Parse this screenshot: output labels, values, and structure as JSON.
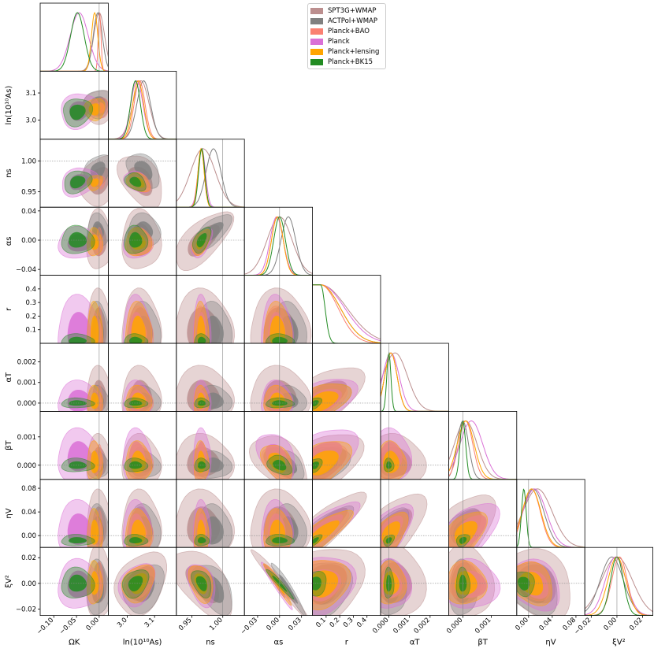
{
  "chart_data": {
    "type": "triangle_corner_plot",
    "parameters": [
      {
        "symbol": "Ω_K",
        "label": "ΩK",
        "ticks": [
          -0.1,
          -0.05,
          0.0
        ],
        "tick_labels": [
          "−0.10",
          "−0.05",
          "0.00"
        ],
        "range": [
          -0.13,
          0.02
        ],
        "fiducial": 0.0
      },
      {
        "symbol": "ln(10^10 A_s)",
        "label": "ln(10¹⁰As)",
        "ticks": [
          3.0,
          3.1
        ],
        "tick_labels": [
          "3.0",
          "3.1"
        ],
        "range": [
          2.93,
          3.18
        ],
        "fiducial": null
      },
      {
        "symbol": "n_s",
        "label": "ns",
        "ticks": [
          0.95,
          1.0
        ],
        "tick_labels": [
          "0.95",
          "1.00"
        ],
        "range": [
          0.925,
          1.035
        ],
        "fiducial": 1.0
      },
      {
        "symbol": "α_s",
        "label": "αs",
        "ticks": [
          -0.03,
          0.0,
          0.03
        ],
        "tick_labels": [
          "−0.03",
          "0.00",
          "0.03"
        ],
        "range": [
          -0.048,
          0.045
        ],
        "fiducial": 0.0
      },
      {
        "symbol": "r",
        "label": "r",
        "ticks": [
          0.1,
          0.2,
          0.3,
          0.4
        ],
        "tick_labels": [
          "0.1",
          "0.2",
          "0.3",
          "0.4"
        ],
        "range": [
          0.0,
          0.5
        ],
        "fiducial": null
      },
      {
        "symbol": "α_T",
        "label": "αT",
        "ticks": [
          0.0,
          0.001,
          0.002
        ],
        "tick_labels": [
          "0.000",
          "0.001",
          "0.002"
        ],
        "range": [
          -0.0004,
          0.0029
        ],
        "fiducial": 0.0
      },
      {
        "symbol": "β_T",
        "label": "βT",
        "ticks": [
          0.0,
          0.001
        ],
        "tick_labels": [
          "0.000",
          "0.001"
        ],
        "range": [
          -0.0005,
          0.0019
        ],
        "fiducial": 0.0
      },
      {
        "symbol": "η_V",
        "label": "ηV",
        "ticks": [
          0.0,
          0.04,
          0.08
        ],
        "tick_labels": [
          "0.00",
          "0.04",
          "0.08"
        ],
        "range": [
          -0.02,
          0.095
        ],
        "fiducial": 0.0
      },
      {
        "symbol": "ξ_V^2",
        "label": "ξV²",
        "ticks": [
          -0.02,
          0.0,
          0.02
        ],
        "tick_labels": [
          "−0.02",
          "0.00",
          "0.02"
        ],
        "range": [
          -0.025,
          0.028
        ],
        "fiducial": 0.0
      }
    ],
    "y_axis_ticks": {
      "ln(10^10 A_s)": {
        "ticks": [
          3.0,
          3.1
        ],
        "tick_labels": [
          "3.0",
          "3.1"
        ]
      },
      "n_s": {
        "ticks": [
          0.95,
          1.0
        ],
        "tick_labels": [
          "0.95",
          "1.00"
        ]
      },
      "α_s": {
        "ticks": [
          -0.04,
          0.0,
          0.04
        ],
        "tick_labels": [
          "−0.04",
          "0.00",
          "0.04"
        ]
      },
      "r": {
        "ticks": [
          0.1,
          0.2,
          0.3,
          0.4
        ],
        "tick_labels": [
          "0.1",
          "0.2",
          "0.3",
          "0.4"
        ]
      },
      "α_T": {
        "ticks": [
          0.0,
          0.001,
          0.002
        ],
        "tick_labels": [
          "0.000",
          "0.001",
          "0.002"
        ]
      },
      "β_T": {
        "ticks": [
          0.0,
          0.001
        ],
        "tick_labels": [
          "0.000",
          "0.001"
        ]
      },
      "η_V": {
        "ticks": [
          0.0,
          0.04,
          0.08
        ],
        "tick_labels": [
          "0.00",
          "0.04",
          "0.08"
        ]
      },
      "ξ_V^2": {
        "ticks": [
          -0.02,
          0.0,
          0.02
        ],
        "tick_labels": [
          "−0.02",
          "0.00",
          "0.02"
        ]
      }
    },
    "legend": {
      "placement": "top-center",
      "entries": [
        {
          "name": "SPT3G+WMAP",
          "color": "#bc8f8f"
        },
        {
          "name": "ACTPol+WMAP",
          "color": "#808080"
        },
        {
          "name": "Planck+BAO",
          "color": "#fa8072"
        },
        {
          "name": "Planck",
          "color": "#da70d6"
        },
        {
          "name": "Planck+lensing",
          "color": "#ffa500"
        },
        {
          "name": "Planck+BK15",
          "color": "#228b22"
        }
      ]
    },
    "series": [
      {
        "name": "SPT3G+WMAP",
        "color": "#bc8f8f",
        "means": [
          0.0,
          3.05,
          0.968,
          0.0,
          0.1,
          0.0003,
          0.0001,
          0.015,
          0.0
        ],
        "sigmas": [
          0.012,
          0.03,
          0.02,
          0.017,
          0.12,
          0.0006,
          0.0004,
          0.025,
          0.012
        ]
      },
      {
        "name": "ACTPol+WMAP",
        "color": "#808080",
        "means": [
          -0.003,
          3.06,
          0.985,
          0.012,
          0.08,
          0.0001,
          0.0,
          0.008,
          -0.004
        ],
        "sigmas": [
          0.01,
          0.025,
          0.012,
          0.01,
          0.09,
          0.0003,
          0.0002,
          0.018,
          0.009
        ]
      },
      {
        "name": "Planck+BAO",
        "color": "#fa8072",
        "means": [
          0.001,
          3.045,
          0.965,
          -0.003,
          0.07,
          0.0001,
          0.0001,
          0.005,
          0.002
        ],
        "sigmas": [
          0.003,
          0.02,
          0.005,
          0.008,
          0.08,
          0.0003,
          0.00025,
          0.015,
          0.006
        ]
      },
      {
        "name": "Planck",
        "color": "#da70d6",
        "means": [
          -0.044,
          3.035,
          0.966,
          -0.004,
          0.08,
          0.0001,
          0.0003,
          0.01,
          -0.001
        ],
        "sigmas": [
          0.02,
          0.022,
          0.006,
          0.009,
          0.11,
          0.0004,
          0.0004,
          0.02,
          0.008
        ]
      },
      {
        "name": "Planck+lensing",
        "color": "#ffa500",
        "means": [
          -0.01,
          3.04,
          0.965,
          -0.003,
          0.08,
          0.0001,
          0.0001,
          0.005,
          0.0
        ],
        "sigmas": [
          0.007,
          0.02,
          0.005,
          0.008,
          0.09,
          0.0003,
          0.0003,
          0.016,
          0.007
        ]
      },
      {
        "name": "Planck+BK15",
        "color": "#228b22",
        "means": [
          -0.048,
          3.03,
          0.966,
          0.0,
          0.02,
          0.0,
          0.0,
          -0.008,
          0.0
        ],
        "sigmas": [
          0.015,
          0.018,
          0.005,
          0.008,
          0.02,
          0.0001,
          0.0001,
          0.004,
          0.005
        ]
      }
    ]
  }
}
